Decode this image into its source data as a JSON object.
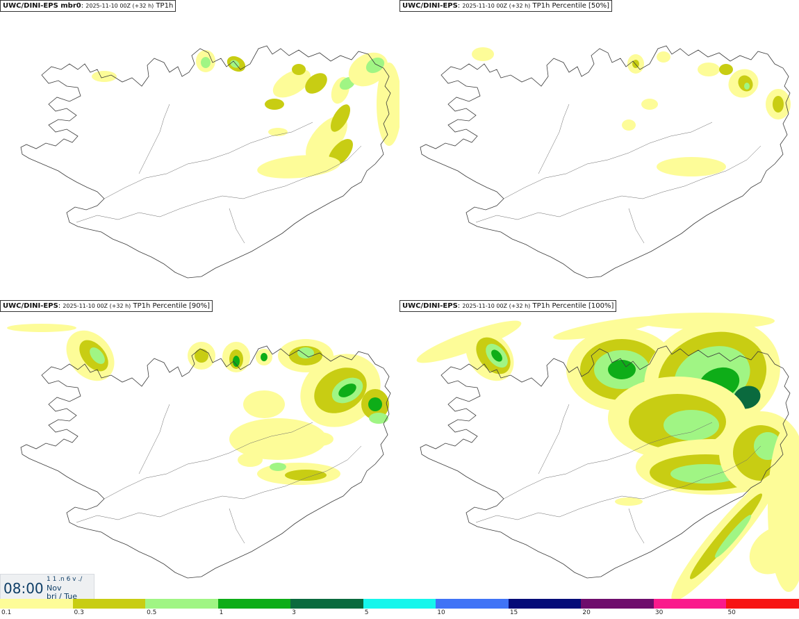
{
  "panels": [
    {
      "model": "UWC/DINI-EPS mbr0",
      "run": "2025-11-10 00Z (+32 h)",
      "field": "TP1h"
    },
    {
      "model": "UWC/DINI-EPS",
      "run": "2025-11-10 00Z (+32 h)",
      "field": "TP1h Percentile [50%]"
    },
    {
      "model": "UWC/DINI-EPS",
      "run": "2025-11-10 00Z (+32 h)",
      "field": "TP1h Percentile [90%]"
    },
    {
      "model": "UWC/DINI-EPS",
      "run": "2025-11-10 00Z (+32 h)",
      "field": "TP1h Percentile [100%]"
    }
  ],
  "valid_time": {
    "time": "08:00",
    "day": "1 1 .n 6 v ./",
    "month": "Nov",
    "weekday": "þri / Tue"
  },
  "colorbar": {
    "labels": [
      "0.1",
      "0.3",
      "0.5",
      "1",
      "3",
      "5",
      "10",
      "15",
      "20",
      "30",
      "50"
    ],
    "colors": [
      "#fdfc98",
      "#c8cd13",
      "#a0f584",
      "#0ead18",
      "#0a6a3e",
      "#16f6ec",
      "#4073f6",
      "#050b78",
      "#6e0c6c",
      "#fa1a8c",
      "#f71413"
    ]
  },
  "colors": {
    "level_01": "#fdfc98",
    "level_03": "#c8cd13",
    "level_05": "#a0f584",
    "level_1": "#0ead18",
    "level_3": "#0a6a3e",
    "coastline": "#3a3a3a"
  }
}
